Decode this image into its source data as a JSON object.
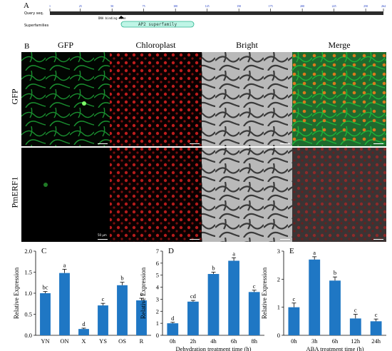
{
  "panel_a": {
    "letter": "A",
    "query_label": "Query seq.",
    "superfamily_label": "Superfamilies",
    "ruler_ticks": [
      "1",
      "25",
      "50",
      "75",
      "100",
      "125",
      "150",
      "175",
      "200",
      "225",
      "250",
      "264"
    ],
    "site_label": "DNA binding site",
    "domain_label": "AP2 superfamily"
  },
  "panel_b": {
    "letter": "B",
    "columns": [
      "GFP",
      "Chloroplast",
      "Bright",
      "Merge"
    ],
    "rows": [
      "GFP",
      "PmERF1"
    ],
    "scalebar_label": "50 μm"
  },
  "colors": {
    "bar": "#1f77c4",
    "green": "#2fa84a",
    "red": "#c01818",
    "domain": "#bff5e6"
  },
  "chart_data": [
    {
      "type": "bar",
      "letter": "C",
      "categories": [
        "YN",
        "ON",
        "X",
        "YS",
        "OS",
        "R"
      ],
      "values": [
        1.0,
        1.48,
        0.15,
        0.71,
        1.19,
        0.83
      ],
      "errors": [
        0.04,
        0.09,
        0.02,
        0.05,
        0.07,
        0.05
      ],
      "sig": [
        "bc",
        "a",
        "d",
        "c",
        "b",
        "c"
      ],
      "ylabel": "Relative Expression",
      "xlabel": "",
      "ylim": [
        0,
        2.0
      ],
      "yticks": [
        "0.0",
        "0.5",
        "1.0",
        "1.5",
        "2.0"
      ]
    },
    {
      "type": "bar",
      "letter": "D",
      "categories": [
        "0h",
        "2h",
        "4h",
        "6h",
        "8h"
      ],
      "values": [
        1.0,
        2.8,
        5.1,
        6.2,
        3.6
      ],
      "errors": [
        0.08,
        0.1,
        0.15,
        0.25,
        0.15
      ],
      "sig": [
        "d",
        "cd",
        "b",
        "a",
        "c"
      ],
      "ylabel": "Relative Expression",
      "xlabel": "Dehydration treatment time (h)",
      "ylim": [
        0,
        7
      ],
      "yticks": [
        "0",
        "1",
        "2",
        "3",
        "4",
        "5",
        "6",
        "7"
      ]
    },
    {
      "type": "bar",
      "letter": "E",
      "categories": [
        "0h",
        "3h",
        "6h",
        "12h",
        "24h"
      ],
      "values": [
        1.0,
        2.7,
        1.95,
        0.6,
        0.5
      ],
      "errors": [
        0.15,
        0.1,
        0.13,
        0.15,
        0.08
      ],
      "sig": [
        "c",
        "a",
        "b",
        "c",
        "c"
      ],
      "ylabel": "Relative Expression",
      "xlabel": "ABA treatment time (h)",
      "ylim": [
        0,
        3
      ],
      "yticks": [
        "0",
        "1",
        "2",
        "3"
      ]
    }
  ]
}
